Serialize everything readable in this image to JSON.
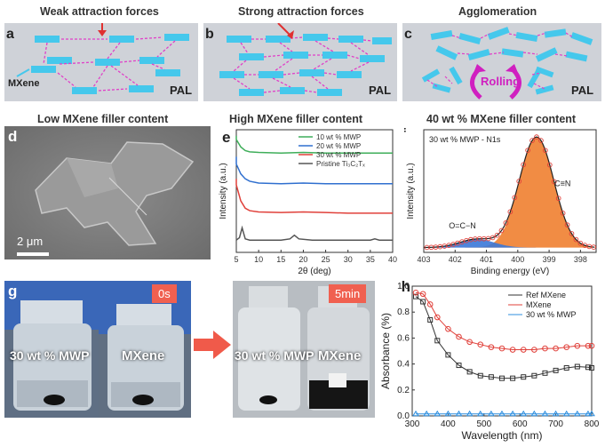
{
  "schematics": {
    "a": {
      "label": "a",
      "title": "Weak attraction forces",
      "mxene_label": "MXene",
      "pal_label": "PAL"
    },
    "b": {
      "label": "b",
      "title": "Strong attraction forces",
      "pal_label": "PAL"
    },
    "c": {
      "label": "c",
      "title": "Agglomeration",
      "rolling_label": "Rolling",
      "pal_label": "PAL"
    }
  },
  "section_titles": {
    "low": "Low MXene filler content",
    "high": "High MXene filler content",
    "forty": "40 wt % MXene filler content"
  },
  "sem": {
    "label": "d",
    "scale": "2 μm"
  },
  "xrd": {
    "label": "e",
    "chart_data": {
      "type": "line",
      "xlabel": "2θ (deg)",
      "ylabel": "Intensity (a.u.)",
      "xlim": [
        5,
        40
      ],
      "xticks": [
        5,
        10,
        15,
        20,
        25,
        30,
        35,
        40
      ],
      "series": [
        {
          "name": "10 wt % MWP",
          "color": "#3fae5a",
          "x": [
            4,
            5,
            6,
            7,
            8,
            10,
            15,
            20,
            25,
            30,
            35,
            40
          ],
          "y": [
            0.95,
            0.92,
            0.86,
            0.83,
            0.82,
            0.815,
            0.81,
            0.815,
            0.81,
            0.81,
            0.81,
            0.81
          ]
        },
        {
          "name": "20 wt % MWP",
          "color": "#2f6fcf",
          "x": [
            4,
            5,
            6,
            7,
            8,
            10,
            15,
            20,
            25,
            30,
            35,
            40
          ],
          "y": [
            0.78,
            0.72,
            0.64,
            0.6,
            0.58,
            0.565,
            0.56,
            0.565,
            0.56,
            0.56,
            0.56,
            0.56
          ]
        },
        {
          "name": "30 wt % MWP",
          "color": "#e0403a",
          "x": [
            4,
            5,
            6,
            7,
            8,
            10,
            15,
            20,
            25,
            30,
            35,
            40
          ],
          "y": [
            0.6,
            0.55,
            0.42,
            0.36,
            0.34,
            0.33,
            0.325,
            0.33,
            0.325,
            0.32,
            0.32,
            0.32
          ]
        },
        {
          "name": "Pristine Ti₃C₂Tₓ",
          "color": "#555555",
          "x": [
            4,
            5,
            5.7,
            6.3,
            7,
            8,
            10,
            15,
            17,
            18,
            19,
            22,
            30,
            35,
            36,
            37,
            40
          ],
          "y": [
            0.1,
            0.1,
            0.12,
            0.2,
            0.11,
            0.1,
            0.1,
            0.1,
            0.11,
            0.14,
            0.11,
            0.1,
            0.1,
            0.1,
            0.11,
            0.1,
            0.1
          ]
        }
      ]
    }
  },
  "xps": {
    "label": "f",
    "inset": "30 wt % MWP - N1s",
    "peak1": "C≡N",
    "peak2": "O=C−N",
    "chart_data": {
      "type": "line",
      "xlabel": "Binding energy (eV)",
      "ylabel": "Intensity (a.u.)",
      "xlim": [
        403,
        397.5
      ],
      "xticks": [
        403,
        402,
        401,
        400,
        399,
        398
      ],
      "series": [
        {
          "name": "C≡N",
          "color": "#f08030",
          "center": 399.4,
          "height": 0.92,
          "width": 0.55
        },
        {
          "name": "O=C−N",
          "color": "#3a78d8",
          "center": 401.3,
          "height": 0.07,
          "width": 0.55
        }
      ]
    }
  },
  "photos": {
    "label": "g",
    "t0": "0s",
    "t5": "5min",
    "mwp": "30 wt % MWP",
    "mxene": "MXene"
  },
  "absorbance": {
    "label": "h",
    "chart_data": {
      "type": "scatter",
      "xlabel": "Wavelength (nm)",
      "ylabel": "Absorbance (%)",
      "xlim": [
        300,
        800
      ],
      "ylim": [
        0,
        1.0
      ],
      "xticks": [
        300,
        400,
        500,
        600,
        700,
        800
      ],
      "yticks": [
        0.0,
        0.2,
        0.4,
        0.6,
        0.8,
        1.0
      ],
      "ytick_labels": [
        "0.0",
        "0.2",
        "0.4",
        "0.6",
        "0.8",
        "1.0"
      ],
      "series": [
        {
          "name": "Ref MXene",
          "color": "#333333",
          "marker": "square",
          "x": [
            310,
            330,
            350,
            370,
            400,
            430,
            460,
            490,
            520,
            550,
            580,
            610,
            640,
            670,
            700,
            730,
            760,
            790,
            800
          ],
          "y": [
            0.92,
            0.88,
            0.74,
            0.58,
            0.47,
            0.39,
            0.34,
            0.31,
            0.3,
            0.29,
            0.29,
            0.3,
            0.31,
            0.33,
            0.35,
            0.37,
            0.38,
            0.375,
            0.37
          ]
        },
        {
          "name": "MXene",
          "color": "#e0403a",
          "marker": "circle",
          "x": [
            310,
            330,
            350,
            370,
            400,
            430,
            460,
            490,
            520,
            550,
            580,
            610,
            640,
            670,
            700,
            730,
            760,
            790,
            800
          ],
          "y": [
            0.95,
            0.94,
            0.86,
            0.76,
            0.67,
            0.61,
            0.57,
            0.55,
            0.53,
            0.52,
            0.51,
            0.51,
            0.51,
            0.52,
            0.52,
            0.53,
            0.54,
            0.54,
            0.54
          ]
        },
        {
          "name": "30 wt % MWP",
          "color": "#2f8fdf",
          "marker": "triangle",
          "x": [
            310,
            340,
            370,
            400,
            430,
            460,
            490,
            520,
            550,
            580,
            610,
            640,
            670,
            700,
            730,
            760,
            790,
            800
          ],
          "y": [
            0.015,
            0.015,
            0.015,
            0.015,
            0.015,
            0.015,
            0.015,
            0.015,
            0.015,
            0.015,
            0.015,
            0.015,
            0.015,
            0.015,
            0.015,
            0.015,
            0.015,
            0.015
          ]
        }
      ]
    }
  }
}
